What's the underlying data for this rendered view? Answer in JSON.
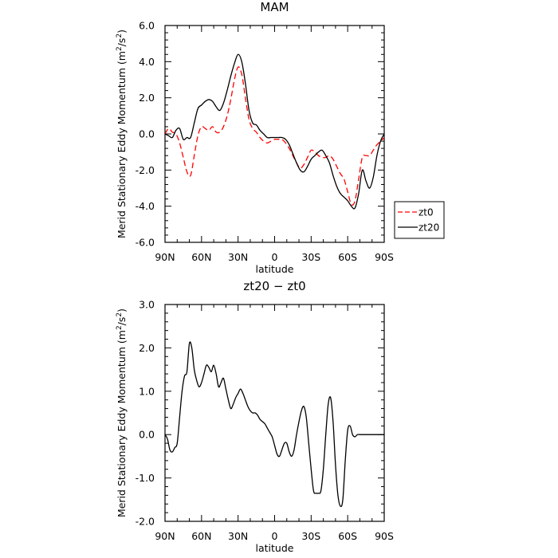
{
  "chart_data": [
    {
      "type": "line",
      "title": "MAM",
      "xlabel": "latitude",
      "ylabel_main": "Merid Stationary Eddy Momentum",
      "ylabel_unit_base": "m",
      "ylabel_unit_exp1": "2",
      "ylabel_unit_mid": "/s",
      "ylabel_unit_exp2": "2",
      "xlim": [
        90,
        -90
      ],
      "ylim": [
        -6,
        6
      ],
      "xticks": [
        90,
        60,
        30,
        0,
        -30,
        -60,
        -90
      ],
      "xtick_labels": [
        "90N",
        "60N",
        "30N",
        "0",
        "30S",
        "60S",
        "90S"
      ],
      "yticks": [
        -6,
        -4,
        -2,
        0,
        2,
        4,
        6
      ],
      "ytick_labels": [
        "-6.0",
        "-4.0",
        "-2.0",
        "0.0",
        "2.0",
        "4.0",
        "6.0"
      ],
      "legend_placement": "right",
      "series": [
        {
          "name": "zt0",
          "color": "#ff0000",
          "dash": "dashed",
          "x": [
            90,
            87,
            84,
            81,
            78,
            75,
            72,
            69,
            66,
            63,
            60,
            57,
            54,
            51,
            48,
            45,
            42,
            39,
            36,
            33,
            30,
            27,
            24,
            21,
            18,
            15,
            12,
            9,
            6,
            3,
            0,
            -3,
            -6,
            -9,
            -12,
            -15,
            -18,
            -21,
            -24,
            -27,
            -30,
            -33,
            -36,
            -39,
            -42,
            -45,
            -48,
            -51,
            -54,
            -57,
            -60,
            -63,
            -66,
            -69,
            -72,
            -75,
            -78,
            -81,
            -84,
            -87,
            -90
          ],
          "y": [
            0.0,
            0.3,
            0.1,
            0.0,
            -0.5,
            -1.3,
            -2.1,
            -2.3,
            -1.2,
            -0.1,
            0.4,
            0.3,
            0.2,
            0.4,
            0.1,
            0.1,
            0.4,
            1.0,
            1.9,
            3.0,
            3.7,
            3.3,
            2.0,
            0.8,
            0.3,
            0.1,
            -0.2,
            -0.4,
            -0.5,
            -0.4,
            -0.3,
            -0.3,
            -0.3,
            -0.5,
            -0.8,
            -1.2,
            -1.6,
            -1.9,
            -1.7,
            -1.3,
            -0.9,
            -1.0,
            -1.2,
            -1.3,
            -1.3,
            -1.2,
            -1.4,
            -1.8,
            -2.2,
            -2.5,
            -3.2,
            -3.9,
            -3.7,
            -2.5,
            -1.3,
            -1.2,
            -1.2,
            -0.9,
            -0.6,
            -0.4,
            -0.2
          ]
        },
        {
          "name": "zt20",
          "color": "#000000",
          "dash": "solid",
          "x": [
            90,
            87,
            84,
            81,
            78,
            75,
            72,
            69,
            66,
            63,
            60,
            57,
            54,
            51,
            48,
            45,
            42,
            39,
            36,
            33,
            30,
            27,
            24,
            21,
            18,
            15,
            12,
            9,
            6,
            3,
            0,
            -3,
            -6,
            -9,
            -12,
            -15,
            -18,
            -21,
            -24,
            -27,
            -30,
            -33,
            -36,
            -39,
            -42,
            -45,
            -48,
            -51,
            -54,
            -57,
            -60,
            -63,
            -66,
            -69,
            -72,
            -75,
            -78,
            -81,
            -84,
            -87,
            -90
          ],
          "y": [
            0.0,
            -0.1,
            -0.2,
            0.2,
            0.3,
            -0.3,
            -0.2,
            -0.2,
            0.6,
            1.4,
            1.6,
            1.8,
            1.9,
            1.8,
            1.5,
            1.3,
            1.7,
            2.4,
            3.2,
            3.9,
            4.4,
            4.0,
            2.8,
            1.3,
            0.6,
            0.5,
            0.2,
            0.0,
            -0.2,
            -0.2,
            -0.2,
            -0.2,
            -0.2,
            -0.3,
            -0.6,
            -1.1,
            -1.6,
            -2.0,
            -2.1,
            -1.8,
            -1.4,
            -1.2,
            -1.0,
            -0.9,
            -1.2,
            -1.6,
            -2.3,
            -2.9,
            -3.3,
            -3.5,
            -3.7,
            -4.0,
            -4.1,
            -3.3,
            -2.0,
            -2.6,
            -3.0,
            -2.4,
            -1.2,
            -0.4,
            0.0
          ]
        }
      ]
    },
    {
      "type": "line",
      "title": "zt20 − zt0",
      "xlabel": "latitude",
      "ylabel_main": "Merid Stationary Eddy Momentum",
      "ylabel_unit_base": "m",
      "ylabel_unit_exp1": "2",
      "ylabel_unit_mid": "/s",
      "ylabel_unit_exp2": "2",
      "xlim": [
        90,
        -90
      ],
      "ylim": [
        -2,
        3
      ],
      "xticks": [
        90,
        60,
        30,
        0,
        -30,
        -60,
        -90
      ],
      "xtick_labels": [
        "90N",
        "60N",
        "30N",
        "0",
        "30S",
        "60S",
        "90S"
      ],
      "yticks": [
        -2,
        -1,
        0,
        1,
        2,
        3
      ],
      "ytick_labels": [
        "-2.0",
        "-1.0",
        "0.0",
        "1.0",
        "2.0",
        "3.0"
      ],
      "series": [
        {
          "color": "#000000",
          "dash": "solid",
          "x": [
            90,
            87,
            84,
            81,
            78,
            75,
            72,
            69,
            66,
            63,
            60,
            57,
            54,
            51,
            48,
            45,
            42,
            39,
            36,
            33,
            30,
            27,
            24,
            21,
            18,
            15,
            12,
            9,
            6,
            3,
            0,
            -3,
            -6,
            -9,
            -12,
            -15,
            -18,
            -21,
            -24,
            -27,
            -30,
            -33,
            -36,
            -39,
            -42,
            -45,
            -48,
            -51,
            -54,
            -57,
            -60,
            -63,
            -66,
            -69,
            -72,
            -75,
            -78,
            -81,
            -84,
            -87,
            -90
          ],
          "y": [
            0.0,
            -0.4,
            -0.3,
            0.4,
            1.3,
            1.5,
            2.15,
            1.6,
            1.2,
            1.2,
            1.6,
            1.5,
            1.6,
            1.1,
            1.3,
            1.0,
            0.6,
            0.8,
            1.05,
            0.9,
            0.6,
            0.5,
            0.5,
            0.3,
            0.2,
            0.0,
            -0.3,
            -0.5,
            -0.3,
            -0.2,
            -0.45,
            -0.3,
            0.2,
            0.65,
            0.4,
            -0.5,
            -1.3,
            -1.35,
            -1.2,
            -0.5,
            0.6,
            0.9,
            0.0,
            -1.0,
            -1.6,
            -1.1,
            0.0,
            0.2,
            0.0,
            0.0,
            0.0,
            0.0,
            0.0,
            0.0,
            0.0,
            0.0,
            0.0,
            0.0,
            0.0,
            0.0,
            0.0
          ]
        }
      ]
    }
  ]
}
